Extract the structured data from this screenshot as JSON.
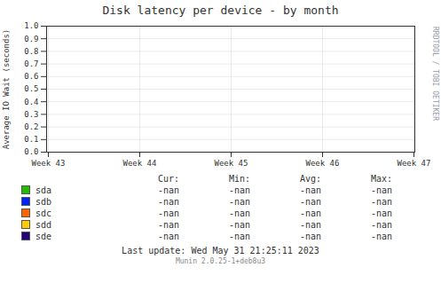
{
  "chart_data": {
    "type": "line",
    "title": "Disk latency per device - by month",
    "y_label": "Average IO Wait (seconds)",
    "categories": [
      "Week 43",
      "Week 44",
      "Week 45",
      "Week 46",
      "Week 47"
    ],
    "ylim": [
      0.0,
      1.0
    ],
    "yticks": [
      {
        "value": 0.0,
        "label": "0.0"
      },
      0.1,
      0.2,
      0.3,
      0.4,
      0.5,
      0.6,
      0.7,
      0.8,
      0.9,
      {
        "value": 1.0,
        "label": "1.0"
      }
    ],
    "grid": true,
    "legend_headers": [
      "Cur:",
      "Min:",
      "Avg:",
      "Max:"
    ],
    "series": [
      {
        "name": "sda",
        "color": "#22bb00",
        "values": [
          null,
          null,
          null,
          null,
          null
        ],
        "legend_values": [
          "-nan",
          "-nan",
          "-nan",
          "-nan"
        ]
      },
      {
        "name": "sdb",
        "color": "#0022ff",
        "values": [
          null,
          null,
          null,
          null,
          null
        ],
        "legend_values": [
          "-nan",
          "-nan",
          "-nan",
          "-nan"
        ]
      },
      {
        "name": "sdc",
        "color": "#ff6600",
        "values": [
          null,
          null,
          null,
          null,
          null
        ],
        "legend_values": [
          "-nan",
          "-nan",
          "-nan",
          "-nan"
        ]
      },
      {
        "name": "sdd",
        "color": "#ffcc00",
        "values": [
          null,
          null,
          null,
          null,
          null
        ],
        "legend_values": [
          "-nan",
          "-nan",
          "-nan",
          "-nan"
        ]
      },
      {
        "name": "sde",
        "color": "#220077",
        "values": [
          null,
          null,
          null,
          null,
          null
        ],
        "legend_values": [
          "-nan",
          "-nan",
          "-nan",
          "-nan"
        ]
      }
    ],
    "annotations": [
      "RRDTOOL / TOBI OETIKER",
      "Last update: Wed May 31 21:25:11 2023",
      "Munin 2.0.25-1+deb8u3"
    ]
  }
}
